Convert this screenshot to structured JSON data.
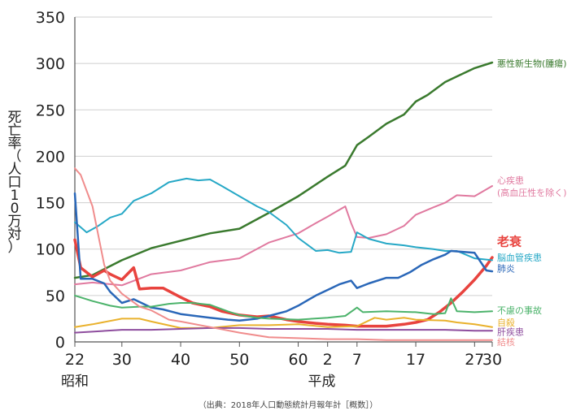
{
  "chart_data": {
    "type": "line",
    "ylabel": "死亡率（人口10万対）",
    "ylim": [
      0,
      350
    ],
    "yticks": [
      0,
      50,
      100,
      150,
      200,
      250,
      300,
      350
    ],
    "xlim": [
      1947,
      2018
    ],
    "xticks": [
      {
        "year": 1947,
        "label": "22"
      },
      {
        "year": 1955,
        "label": "30"
      },
      {
        "year": 1965,
        "label": "40"
      },
      {
        "year": 1975,
        "label": "50"
      },
      {
        "year": 1985,
        "label": "60"
      },
      {
        "year": 1990,
        "label": "2"
      },
      {
        "year": 1995,
        "label": "7"
      },
      {
        "year": 2005,
        "label": "17"
      },
      {
        "year": 2015,
        "label": "27"
      },
      {
        "year": 2018,
        "label": "30"
      }
    ],
    "era_labels": [
      {
        "year": 1947,
        "label": "昭和"
      },
      {
        "year": 1989,
        "label": "平成"
      }
    ],
    "source": "（出典：2018年人口動態統計月報年計［概数］）",
    "grid": "horizontal",
    "series": [
      {
        "name": "悪性新生物(腫瘍)",
        "label_lines": [
          "悪性新生物(腫瘍)"
        ],
        "label_y": [
          300
        ],
        "color": "#3a7a2e",
        "width": 2.5,
        "data": [
          [
            1947,
            69
          ],
          [
            1950,
            72
          ],
          [
            1955,
            88
          ],
          [
            1960,
            101
          ],
          [
            1965,
            109
          ],
          [
            1970,
            117
          ],
          [
            1975,
            122
          ],
          [
            1980,
            139
          ],
          [
            1985,
            157
          ],
          [
            1990,
            178
          ],
          [
            1993,
            190
          ],
          [
            1995,
            212
          ],
          [
            1997,
            221
          ],
          [
            2000,
            235
          ],
          [
            2003,
            245
          ],
          [
            2005,
            259
          ],
          [
            2007,
            266
          ],
          [
            2010,
            280
          ],
          [
            2012,
            286
          ],
          [
            2015,
            295
          ],
          [
            2018,
            301
          ]
        ]
      },
      {
        "name": "心疾患",
        "label_lines": [
          "心疾患",
          "(高血圧性を除く)"
        ],
        "label_y": [
          174,
          161
        ],
        "color": "#e0799f",
        "width": 2,
        "data": [
          [
            1947,
            62
          ],
          [
            1950,
            64
          ],
          [
            1955,
            61
          ],
          [
            1960,
            73
          ],
          [
            1965,
            77
          ],
          [
            1970,
            86
          ],
          [
            1975,
            90
          ],
          [
            1980,
            107
          ],
          [
            1985,
            117
          ],
          [
            1988,
            128
          ],
          [
            1990,
            135
          ],
          [
            1993,
            146
          ],
          [
            1994,
            128
          ],
          [
            1995,
            113
          ],
          [
            1997,
            112
          ],
          [
            2000,
            116
          ],
          [
            2003,
            125
          ],
          [
            2005,
            137
          ],
          [
            2008,
            145
          ],
          [
            2010,
            150
          ],
          [
            2012,
            158
          ],
          [
            2015,
            157
          ],
          [
            2018,
            168
          ]
        ]
      },
      {
        "name": "老衰",
        "label_lines": [
          "老衰"
        ],
        "label_y": [
          107
        ],
        "color": "#e8433e",
        "width": 3.5,
        "label_class": "series-label-big",
        "data": [
          [
            1947,
            110
          ],
          [
            1948,
            80
          ],
          [
            1950,
            70
          ],
          [
            1952,
            77
          ],
          [
            1953,
            73
          ],
          [
            1955,
            67
          ],
          [
            1957,
            80
          ],
          [
            1958,
            57
          ],
          [
            1960,
            58
          ],
          [
            1962,
            58
          ],
          [
            1965,
            48
          ],
          [
            1967,
            42
          ],
          [
            1970,
            38
          ],
          [
            1972,
            33
          ],
          [
            1975,
            29
          ],
          [
            1978,
            27
          ],
          [
            1980,
            28
          ],
          [
            1983,
            24
          ],
          [
            1985,
            22
          ],
          [
            1988,
            20
          ],
          [
            1990,
            19
          ],
          [
            1993,
            18
          ],
          [
            1995,
            17
          ],
          [
            1998,
            17
          ],
          [
            2000,
            17
          ],
          [
            2003,
            19
          ],
          [
            2005,
            21
          ],
          [
            2007,
            24
          ],
          [
            2009,
            32
          ],
          [
            2011,
            42
          ],
          [
            2013,
            54
          ],
          [
            2015,
            67
          ],
          [
            2017,
            82
          ],
          [
            2018,
            91
          ]
        ]
      },
      {
        "name": "脳血管疾患",
        "label_lines": [
          "脳血管疾患"
        ],
        "label_y": [
          91
        ],
        "color": "#26a8c6",
        "width": 2,
        "data": [
          [
            1947,
            129
          ],
          [
            1949,
            118
          ],
          [
            1951,
            125
          ],
          [
            1953,
            134
          ],
          [
            1955,
            138
          ],
          [
            1957,
            152
          ],
          [
            1960,
            160
          ],
          [
            1963,
            172
          ],
          [
            1966,
            176
          ],
          [
            1968,
            174
          ],
          [
            1970,
            175
          ],
          [
            1972,
            168
          ],
          [
            1975,
            157
          ],
          [
            1978,
            146
          ],
          [
            1980,
            140
          ],
          [
            1983,
            126
          ],
          [
            1985,
            112
          ],
          [
            1988,
            98
          ],
          [
            1990,
            99
          ],
          [
            1992,
            96
          ],
          [
            1994,
            97
          ],
          [
            1995,
            118
          ],
          [
            1997,
            111
          ],
          [
            2000,
            106
          ],
          [
            2003,
            104
          ],
          [
            2005,
            102
          ],
          [
            2008,
            100
          ],
          [
            2010,
            98
          ],
          [
            2012,
            98
          ],
          [
            2015,
            90
          ],
          [
            2018,
            88
          ]
        ]
      },
      {
        "name": "肺炎",
        "label_lines": [
          "肺炎"
        ],
        "label_y": [
          79
        ],
        "color": "#2a67b8",
        "width": 2.5,
        "data": [
          [
            1947,
            160
          ],
          [
            1948,
            68
          ],
          [
            1950,
            68
          ],
          [
            1952,
            63
          ],
          [
            1953,
            54
          ],
          [
            1955,
            42
          ],
          [
            1957,
            46
          ],
          [
            1960,
            37
          ],
          [
            1962,
            35
          ],
          [
            1965,
            30
          ],
          [
            1970,
            26
          ],
          [
            1973,
            24
          ],
          [
            1975,
            23
          ],
          [
            1978,
            25
          ],
          [
            1980,
            28
          ],
          [
            1983,
            33
          ],
          [
            1985,
            39
          ],
          [
            1988,
            50
          ],
          [
            1990,
            56
          ],
          [
            1992,
            62
          ],
          [
            1994,
            66
          ],
          [
            1995,
            58
          ],
          [
            1997,
            63
          ],
          [
            2000,
            69
          ],
          [
            2002,
            69
          ],
          [
            2004,
            75
          ],
          [
            2006,
            83
          ],
          [
            2008,
            89
          ],
          [
            2010,
            94
          ],
          [
            2011,
            98
          ],
          [
            2013,
            97
          ],
          [
            2015,
            96
          ],
          [
            2017,
            77
          ],
          [
            2018,
            76
          ]
        ]
      },
      {
        "name": "不慮の事故",
        "label_lines": [
          "不慮の事故"
        ],
        "label_y": [
          34
        ],
        "color": "#4cb36b",
        "width": 2,
        "data": [
          [
            1947,
            50
          ],
          [
            1950,
            44
          ],
          [
            1953,
            39
          ],
          [
            1955,
            37
          ],
          [
            1958,
            38
          ],
          [
            1960,
            38
          ],
          [
            1963,
            41
          ],
          [
            1965,
            42
          ],
          [
            1967,
            42
          ],
          [
            1970,
            40
          ],
          [
            1973,
            33
          ],
          [
            1975,
            29
          ],
          [
            1978,
            26
          ],
          [
            1980,
            25
          ],
          [
            1985,
            24
          ],
          [
            1990,
            26
          ],
          [
            1993,
            28
          ],
          [
            1995,
            37
          ],
          [
            1996,
            32
          ],
          [
            2000,
            33
          ],
          [
            2005,
            32
          ],
          [
            2008,
            30
          ],
          [
            2010,
            31
          ],
          [
            2011,
            47
          ],
          [
            2012,
            33
          ],
          [
            2015,
            32
          ],
          [
            2018,
            33
          ]
        ]
      },
      {
        "name": "自殺",
        "label_lines": [
          "自殺"
        ],
        "label_y": [
          21
        ],
        "color": "#e9b12c",
        "width": 2,
        "data": [
          [
            1947,
            16
          ],
          [
            1950,
            19
          ],
          [
            1955,
            25
          ],
          [
            1958,
            25
          ],
          [
            1960,
            22
          ],
          [
            1965,
            15
          ],
          [
            1970,
            15
          ],
          [
            1975,
            18
          ],
          [
            1980,
            18
          ],
          [
            1985,
            19
          ],
          [
            1990,
            16
          ],
          [
            1995,
            17
          ],
          [
            1998,
            26
          ],
          [
            2000,
            24
          ],
          [
            2003,
            26
          ],
          [
            2005,
            24
          ],
          [
            2010,
            23
          ],
          [
            2012,
            21
          ],
          [
            2015,
            19
          ],
          [
            2018,
            16
          ]
        ]
      },
      {
        "name": "肝疾患",
        "label_lines": [
          "肝疾患"
        ],
        "label_y": [
          11
        ],
        "color": "#8e4d9e",
        "width": 2,
        "data": [
          [
            1947,
            10
          ],
          [
            1950,
            11
          ],
          [
            1955,
            13
          ],
          [
            1960,
            13
          ],
          [
            1965,
            14
          ],
          [
            1970,
            15
          ],
          [
            1975,
            15
          ],
          [
            1980,
            14
          ],
          [
            1985,
            14
          ],
          [
            1990,
            14
          ],
          [
            1995,
            13
          ],
          [
            2000,
            13
          ],
          [
            2005,
            13
          ],
          [
            2010,
            13
          ],
          [
            2015,
            12
          ],
          [
            2018,
            12
          ]
        ]
      },
      {
        "name": "結核",
        "label_lines": [
          "結核"
        ],
        "label_y": [
          0
        ],
        "color": "#f08c8c",
        "width": 2,
        "data": [
          [
            1947,
            187
          ],
          [
            1948,
            180
          ],
          [
            1950,
            146
          ],
          [
            1952,
            83
          ],
          [
            1953,
            66
          ],
          [
            1955,
            52
          ],
          [
            1958,
            38
          ],
          [
            1960,
            34
          ],
          [
            1963,
            24
          ],
          [
            1965,
            22
          ],
          [
            1970,
            16
          ],
          [
            1975,
            10
          ],
          [
            1980,
            5
          ],
          [
            1985,
            4
          ],
          [
            1990,
            3
          ],
          [
            1995,
            3
          ],
          [
            2000,
            2
          ],
          [
            2005,
            2
          ],
          [
            2010,
            2
          ],
          [
            2015,
            2
          ],
          [
            2018,
            2
          ]
        ]
      }
    ]
  }
}
